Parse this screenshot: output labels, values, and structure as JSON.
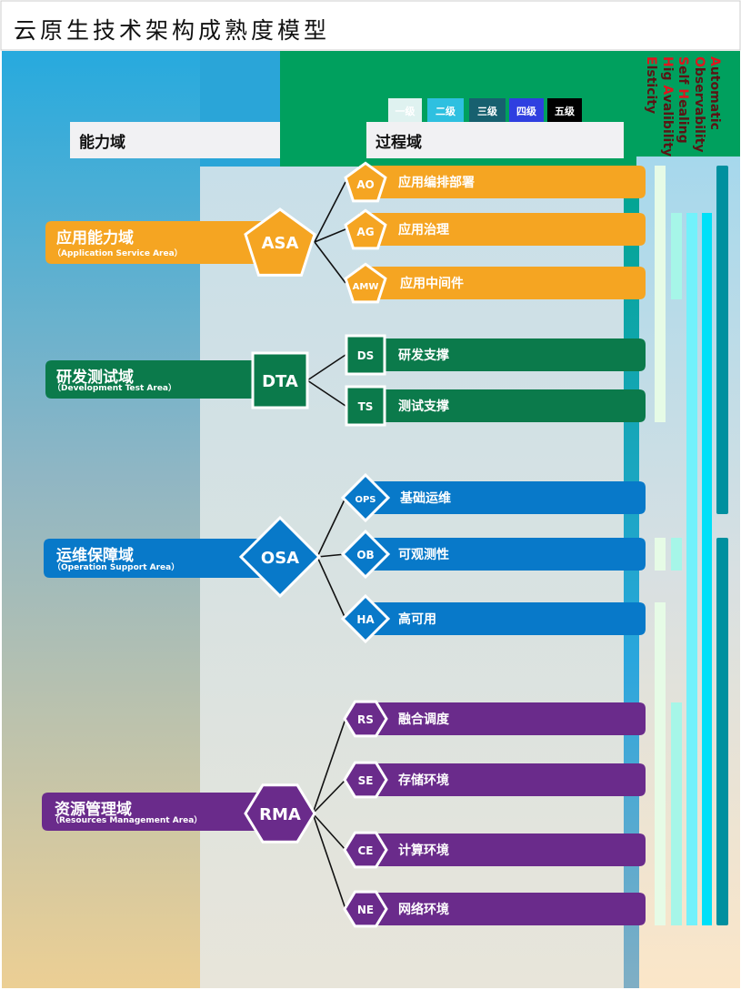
{
  "title": "云原生技术架构成熟度模型",
  "headers": {
    "capability": "能力域",
    "process": "过程域"
  },
  "legend": [
    {
      "label": "一级",
      "color": "#dff2f0",
      "text_color": "#ffffff"
    },
    {
      "label": "二级",
      "color": "#2ec0e0",
      "text_color": "#ffffff"
    },
    {
      "label": "三级",
      "color": "#17606f",
      "text_color": "#ffffff"
    },
    {
      "label": "四级",
      "color": "#2f3fe0",
      "text_color": "#ffffff"
    },
    {
      "label": "五级",
      "color": "#000000",
      "text_color": "#ffffff"
    }
  ],
  "features": [
    {
      "initial": "A",
      "rest": "utomatic"
    },
    {
      "initial": "O",
      "rest": "bservability"
    },
    {
      "initial": "S",
      "rest": "elf ",
      "initial2": "H",
      "rest2": "ealing"
    },
    {
      "initial": "H",
      "rest": "ig ",
      "initial2": "A",
      "rest2": "valibility"
    },
    {
      "initial": "E",
      "rest": "lsticity"
    }
  ],
  "domains": [
    {
      "code": "ASA",
      "name": "应用能力域",
      "en": "（Application Service Area）",
      "shape": "pentagon",
      "color": "#f5a522",
      "processes": [
        {
          "code": "AO",
          "name": "应用编排部署"
        },
        {
          "code": "AG",
          "name": "应用治理"
        },
        {
          "code": "AMW",
          "name": "应用中间件"
        }
      ]
    },
    {
      "code": "DTA",
      "name": "研发测试域",
      "en": "（Development Test Area）",
      "shape": "square",
      "color": "#0b7a4b",
      "processes": [
        {
          "code": "DS",
          "name": "研发支撑"
        },
        {
          "code": "TS",
          "name": "测试支撑"
        }
      ]
    },
    {
      "code": "OSA",
      "name": "运维保障域",
      "en": "（Operation Support Area）",
      "shape": "diamond",
      "color": "#0879c9",
      "processes": [
        {
          "code": "OPS",
          "name": "基础运维"
        },
        {
          "code": "OB",
          "name": "可观测性"
        },
        {
          "code": "HA",
          "name": "高可用"
        }
      ]
    },
    {
      "code": "RMA",
      "name": "资源管理域",
      "en": "（Resources Management Area）",
      "shape": "hexagon",
      "color": "#6a2b8b",
      "processes": [
        {
          "code": "RS",
          "name": "融合调度"
        },
        {
          "code": "SE",
          "name": "存储环境"
        },
        {
          "code": "CE",
          "name": "计算环境"
        },
        {
          "code": "NE",
          "name": "网络环境"
        }
      ]
    }
  ],
  "level_coverage": [
    {
      "level": "一级",
      "color": "#e6fbe6",
      "spans": [
        [
          "AO",
          "TS"
        ],
        [
          "OB",
          "OB"
        ],
        [
          "HA",
          "NE"
        ]
      ]
    },
    {
      "level": "二级",
      "color": "#a6f6e8",
      "spans": [
        [
          "AG",
          "AMW"
        ],
        [
          "OB",
          "OB"
        ],
        [
          "RS",
          "NE"
        ]
      ]
    },
    {
      "level": "三级",
      "color": "#72f1fb",
      "spans": [
        [
          "AG",
          "NE"
        ]
      ]
    },
    {
      "level": "四级",
      "color": "#00e0f8",
      "spans": [
        [
          "AG",
          "NE"
        ]
      ]
    },
    {
      "level": "五级",
      "color": "#00909f",
      "spans": [
        [
          "AO",
          "OPS"
        ],
        [
          "OB",
          "NE"
        ]
      ]
    }
  ],
  "colors": {
    "header_green": "#00a05e",
    "process_rail": "#00a597"
  }
}
